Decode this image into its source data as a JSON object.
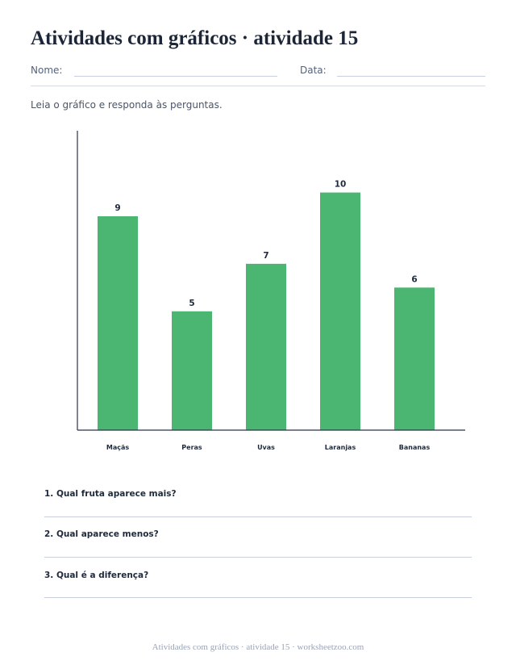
{
  "page": {
    "title": "Atividades com gráficos · atividade 15",
    "name_label": "Nome:",
    "date_label": "Data:",
    "instructions": "Leia o gráfico e responda às perguntas.",
    "footer": "Atividades com gráficos · atividade 15 · worksheetzoo.com"
  },
  "questions": [
    "1. Qual fruta aparece mais?",
    "2. Qual aparece menos?",
    "3. Qual é a diferença?"
  ],
  "chart_data": {
    "type": "bar",
    "categories": [
      "Maçãs",
      "Peras",
      "Uvas",
      "Laranjas",
      "Bananas"
    ],
    "values": [
      9,
      5,
      7,
      10,
      6
    ],
    "ylim": [
      0,
      12.6
    ],
    "grid": false,
    "legend": "none",
    "bar_color": "#4bb672"
  }
}
